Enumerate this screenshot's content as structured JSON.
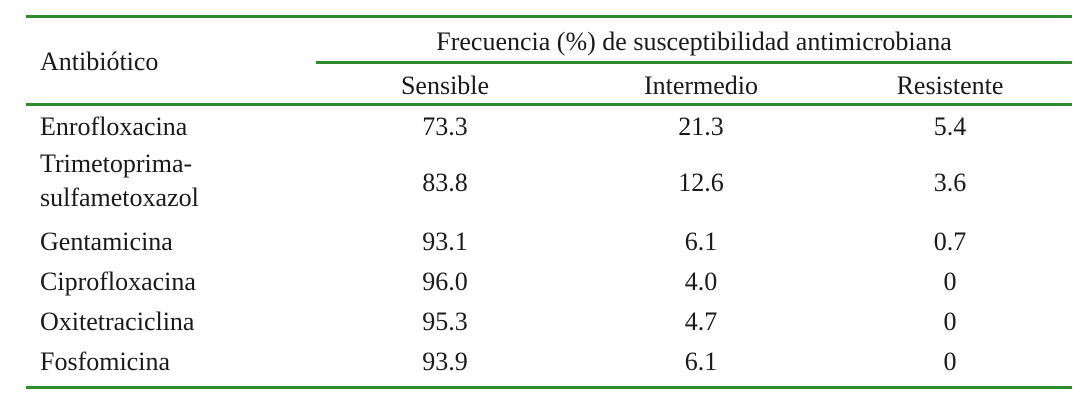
{
  "colors": {
    "rule": "#2e8b2e",
    "text": "#1a1a1a"
  },
  "table": {
    "header_antibiotic": "Antibiótico",
    "header_frequency": "Frecuencia (%) de susceptibilidad antimicrobiana",
    "subheaders": [
      "Sensible",
      "Intermedio",
      "Resistente"
    ],
    "rows": [
      {
        "name": "Enrofloxacina",
        "sensible": "73.3",
        "intermedio": "21.3",
        "resistente": "5.4"
      },
      {
        "name": "Trimetoprima-sulfametoxazol",
        "name_line1": "Trimetoprima-",
        "name_line2": "sulfametoxazol",
        "sensible": "83.8",
        "intermedio": "12.6",
        "resistente": "3.6"
      },
      {
        "name": "Gentamicina",
        "sensible": "93.1",
        "intermedio": "6.1",
        "resistente": "0.7"
      },
      {
        "name": "Ciprofloxacina",
        "sensible": "96.0",
        "intermedio": "4.0",
        "resistente": "0"
      },
      {
        "name": "Oxitetraciclina",
        "sensible": "95.3",
        "intermedio": "4.7",
        "resistente": "0"
      },
      {
        "name": "Fosfomicina",
        "sensible": "93.9",
        "intermedio": "6.1",
        "resistente": "0"
      }
    ]
  }
}
